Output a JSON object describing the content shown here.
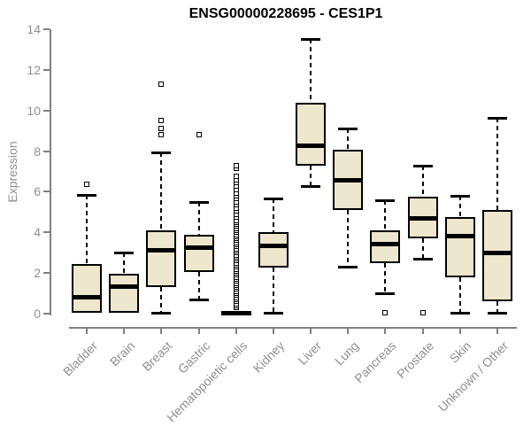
{
  "chart_data": {
    "type": "box",
    "title": "ENSG00000228695 - CES1P1",
    "ylabel": "Expression",
    "xlabel": "",
    "ylim": [
      0,
      14
    ],
    "yticks": [
      0,
      2,
      4,
      6,
      8,
      10,
      12,
      14
    ],
    "grid": false,
    "legend": "none",
    "categories": [
      "Bladder",
      "Brain",
      "Breast",
      "Gastric",
      "Hematopoietic cells",
      "Kidney",
      "Liver",
      "Lung",
      "Pancreas",
      "Prostate",
      "Skin",
      "Unknown / Other"
    ],
    "series": [
      {
        "name": "Bladder",
        "min": 0.05,
        "q1": 0.05,
        "median": 0.85,
        "q3": 2.45,
        "max": 5.85,
        "outliers": [
          6.35
        ]
      },
      {
        "name": "Brain",
        "min": 0.05,
        "q1": 0.05,
        "median": 1.35,
        "q3": 1.95,
        "max": 3.0,
        "outliers": []
      },
      {
        "name": "Breast",
        "min": 0.05,
        "q1": 1.3,
        "median": 3.15,
        "q3": 4.1,
        "max": 7.95,
        "outliers": [
          8.8,
          9.1,
          9.5,
          11.3
        ]
      },
      {
        "name": "Gastric",
        "min": 0.7,
        "q1": 2.05,
        "median": 3.25,
        "q3": 3.9,
        "max": 5.5,
        "outliers": [
          8.8
        ]
      },
      {
        "name": "Hematopoietic cells",
        "min": 0.0,
        "q1": 0.0,
        "median": 0.05,
        "q3": 0.1,
        "max": 0.1,
        "outliers": [
          0.3,
          0.4,
          0.5,
          0.6,
          0.7,
          0.8,
          0.9,
          1.0,
          1.1,
          1.2,
          1.3,
          1.4,
          1.5,
          1.6,
          1.7,
          1.8,
          1.9,
          2.0,
          2.1,
          2.2,
          2.3,
          2.4,
          2.5,
          2.6,
          2.7,
          2.8,
          2.9,
          3.0,
          3.1,
          3.2,
          3.3,
          3.4,
          3.5,
          3.6,
          3.7,
          3.8,
          3.9,
          4.0,
          4.1,
          4.2,
          4.3,
          4.4,
          4.5,
          4.6,
          4.75,
          4.9,
          5.05,
          5.2,
          5.35,
          5.5,
          5.65,
          5.8,
          5.95,
          6.1,
          6.3,
          6.45,
          6.6,
          6.75,
          7.15,
          7.3
        ]
      },
      {
        "name": "Kidney",
        "min": 0.05,
        "q1": 2.25,
        "median": 3.35,
        "q3": 4.0,
        "max": 5.65,
        "outliers": []
      },
      {
        "name": "Liver",
        "min": 6.3,
        "q1": 7.3,
        "median": 8.3,
        "q3": 10.4,
        "max": 13.5,
        "outliers": []
      },
      {
        "name": "Lung",
        "min": 2.3,
        "q1": 5.1,
        "median": 6.6,
        "q3": 8.05,
        "max": 9.1,
        "outliers": []
      },
      {
        "name": "Pancreas",
        "min": 1.0,
        "q1": 2.5,
        "median": 3.45,
        "q3": 4.1,
        "max": 5.6,
        "outliers": [
          0.05
        ]
      },
      {
        "name": "Prostate",
        "min": 2.7,
        "q1": 3.7,
        "median": 4.7,
        "q3": 5.75,
        "max": 7.3,
        "outliers": [
          0.05
        ]
      },
      {
        "name": "Skin",
        "min": 0.05,
        "q1": 1.8,
        "median": 3.85,
        "q3": 4.75,
        "max": 5.8,
        "outliers": []
      },
      {
        "name": "Unknown / Other",
        "min": 0.05,
        "q1": 0.6,
        "median": 3.0,
        "q3": 5.1,
        "max": 9.65,
        "outliers": []
      }
    ],
    "colors": {
      "box_fill": "#ece7cd",
      "box_border": "#000000",
      "median": "#000000",
      "whisker": "#000000",
      "outlier": "#000000",
      "axis": "#808080",
      "tick_text": "#8f8f8f",
      "title_text": "#000000"
    }
  }
}
